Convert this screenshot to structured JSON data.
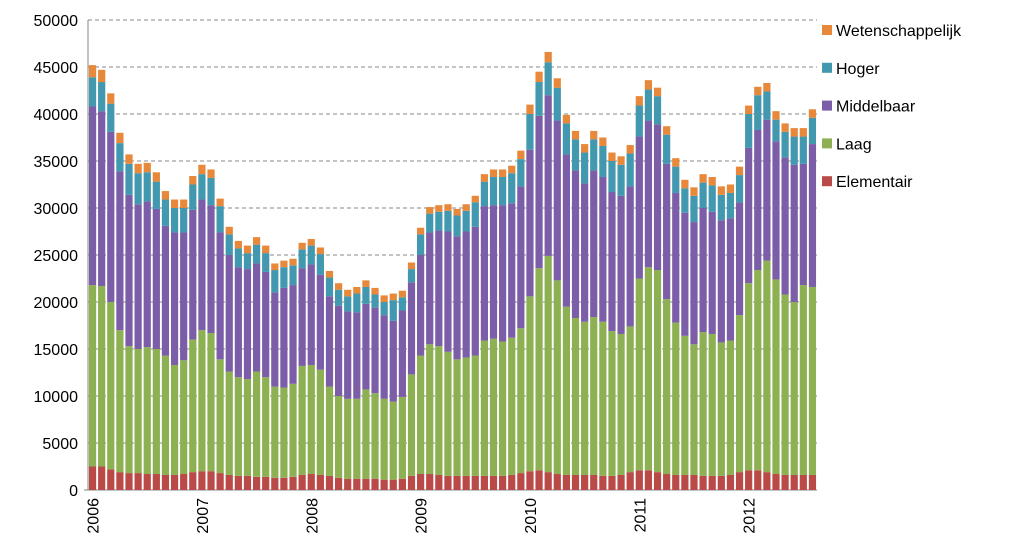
{
  "chart_data": {
    "type": "stacked-bar",
    "categories": [
      "2006",
      null,
      null,
      null,
      null,
      null,
      null,
      null,
      null,
      null,
      null,
      null,
      "2007",
      null,
      null,
      null,
      null,
      null,
      null,
      null,
      null,
      null,
      null,
      null,
      "2008",
      null,
      null,
      null,
      null,
      null,
      null,
      null,
      null,
      null,
      null,
      null,
      "2009",
      null,
      null,
      null,
      null,
      null,
      null,
      null,
      null,
      null,
      null,
      null,
      "2010",
      null,
      null,
      null,
      null,
      null,
      null,
      null,
      null,
      null,
      null,
      null,
      "2011",
      null,
      null,
      null,
      null,
      null,
      null,
      null,
      null,
      null,
      null,
      null,
      "2012",
      null,
      null,
      null,
      null,
      null,
      null,
      null
    ],
    "series": [
      {
        "name": "Elementair",
        "color": "#b94a48",
        "values": [
          2500,
          2500,
          2200,
          1900,
          1800,
          1800,
          1700,
          1700,
          1600,
          1600,
          1700,
          1900,
          2000,
          2000,
          1800,
          1600,
          1500,
          1500,
          1400,
          1400,
          1300,
          1300,
          1400,
          1600,
          1700,
          1600,
          1500,
          1300,
          1200,
          1200,
          1200,
          1200,
          1100,
          1100,
          1200,
          1500,
          1700,
          1700,
          1600,
          1500,
          1500,
          1500,
          1500,
          1500,
          1500,
          1500,
          1600,
          1800,
          2000,
          2100,
          1900,
          1700,
          1600,
          1600,
          1600,
          1600,
          1500,
          1500,
          1600,
          1900,
          2100,
          2100,
          1900,
          1700,
          1600,
          1600,
          1600,
          1500,
          1500,
          1500,
          1600,
          1900,
          2100,
          2100,
          1900,
          1700,
          1600,
          1600,
          1600,
          1600
        ]
      },
      {
        "name": "Laag",
        "color": "#8db152",
        "values": [
          19300,
          19200,
          17800,
          15100,
          13500,
          13200,
          13500,
          13300,
          12700,
          11700,
          12100,
          14100,
          15000,
          14700,
          12100,
          11000,
          10500,
          10300,
          11200,
          10600,
          9700,
          9600,
          9900,
          11600,
          11600,
          11200,
          9500,
          8700,
          8500,
          8500,
          9500,
          9100,
          8600,
          8300,
          8700,
          10800,
          12600,
          13800,
          13700,
          13200,
          12400,
          12600,
          12800,
          14400,
          14600,
          14300,
          14600,
          15400,
          18600,
          21500,
          23000,
          20600,
          17900,
          16700,
          16300,
          16800,
          16400,
          15400,
          15000,
          15500,
          20400,
          21600,
          21500,
          18600,
          16200,
          14800,
          13900,
          15300,
          15100,
          14200,
          14300,
          16700,
          19900,
          21300,
          22500,
          20700,
          19200,
          18400,
          20200,
          20000
        ]
      },
      {
        "name": "Middelbaar",
        "color": "#7b5ea7",
        "values": [
          19000,
          18600,
          18100,
          16900,
          16100,
          15400,
          15500,
          14900,
          13800,
          14100,
          13600,
          13800,
          13900,
          13600,
          13500,
          12400,
          11700,
          11700,
          11500,
          11200,
          10000,
          10600,
          10500,
          10400,
          10700,
          10100,
          9600,
          9600,
          9300,
          9200,
          9100,
          9100,
          8900,
          8600,
          9200,
          9800,
          10700,
          11900,
          12300,
          12800,
          13100,
          13400,
          13700,
          14300,
          14200,
          14500,
          14300,
          15100,
          15600,
          16200,
          17100,
          17000,
          16200,
          15700,
          14700,
          15600,
          15400,
          14800,
          14700,
          14900,
          15100,
          15600,
          15500,
          14400,
          13800,
          13100,
          13000,
          13200,
          13000,
          13000,
          13000,
          12000,
          14400,
          14900,
          15000,
          14700,
          14600,
          14600,
          12900,
          15200
        ]
      },
      {
        "name": "Hoger",
        "color": "#4198af",
        "values": [
          3100,
          3100,
          3000,
          3000,
          3300,
          3300,
          3100,
          2900,
          2800,
          2600,
          2600,
          2700,
          2700,
          2900,
          2800,
          2200,
          2000,
          1700,
          2000,
          2000,
          2400,
          2200,
          2100,
          2000,
          2000,
          2200,
          2000,
          1700,
          1600,
          2000,
          1800,
          1400,
          1400,
          2200,
          1400,
          1400,
          2200,
          2000,
          2000,
          2200,
          2200,
          2200,
          2600,
          2600,
          3000,
          3000,
          3200,
          2900,
          3800,
          3600,
          3500,
          3500,
          3300,
          3300,
          3300,
          3300,
          3300,
          3300,
          3300,
          3500,
          3300,
          3300,
          3000,
          3100,
          2800,
          2600,
          2800,
          2700,
          2800,
          2700,
          2700,
          2900,
          3600,
          3700,
          3000,
          2300,
          2700,
          3000,
          2900,
          2800
        ]
      },
      {
        "name": "Wetenschappelijk",
        "color": "#e8883a",
        "values": [
          1300,
          1300,
          1100,
          1100,
          1000,
          1000,
          1000,
          1000,
          900,
          900,
          900,
          900,
          1000,
          900,
          800,
          800,
          800,
          800,
          800,
          800,
          700,
          700,
          700,
          700,
          700,
          700,
          700,
          700,
          700,
          700,
          700,
          700,
          700,
          700,
          700,
          700,
          700,
          700,
          700,
          700,
          700,
          700,
          700,
          800,
          800,
          800,
          800,
          900,
          1000,
          1100,
          1100,
          1000,
          900,
          900,
          900,
          900,
          900,
          900,
          900,
          900,
          1000,
          1000,
          900,
          900,
          900,
          900,
          900,
          900,
          900,
          900,
          900,
          900,
          900,
          900,
          900,
          900,
          900,
          900,
          900,
          900
        ]
      }
    ],
    "ylim": [
      0,
      50000
    ],
    "yticks": [
      0,
      5000,
      10000,
      15000,
      20000,
      25000,
      30000,
      35000,
      40000,
      45000,
      50000
    ],
    "grid": true,
    "legend": "right"
  }
}
